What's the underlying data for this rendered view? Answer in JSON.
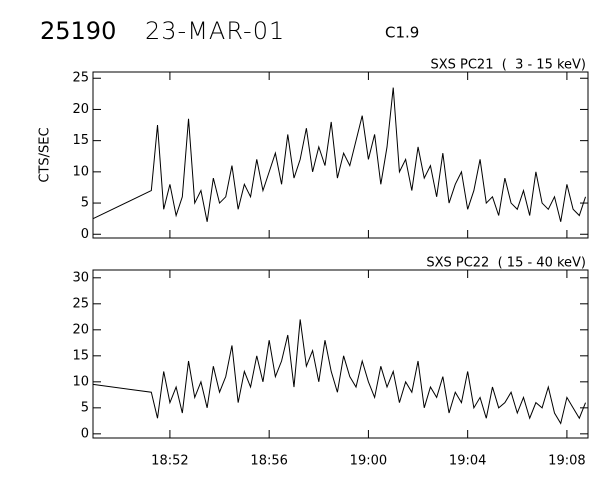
{
  "header": {
    "id": "25190",
    "date": "23-MAR-01",
    "class": "C1.9"
  },
  "chart_data": [
    {
      "type": "line",
      "title": "SXS PC21  (  3 - 15 keV)",
      "ylabel": "CTS/SEC",
      "color": "#000000",
      "x": [
        1128.9,
        1131.25,
        1131.5,
        1131.75,
        1132,
        1132.25,
        1132.5,
        1132.75,
        1133,
        1133.25,
        1133.5,
        1133.75,
        1134,
        1134.25,
        1134.5,
        1134.75,
        1135,
        1135.25,
        1135.5,
        1135.75,
        1136,
        1136.25,
        1136.5,
        1136.75,
        1137,
        1137.25,
        1137.5,
        1137.75,
        1138,
        1138.25,
        1138.5,
        1138.75,
        1139,
        1139.25,
        1139.5,
        1139.75,
        1140,
        1140.25,
        1140.5,
        1140.75,
        1141,
        1141.25,
        1141.5,
        1141.75,
        1142,
        1142.25,
        1142.5,
        1142.75,
        1143,
        1143.25,
        1143.5,
        1143.75,
        1144,
        1144.25,
        1144.5,
        1144.75,
        1145,
        1145.25,
        1145.5,
        1145.75,
        1146,
        1146.25,
        1146.5,
        1146.75,
        1147,
        1147.25,
        1147.5,
        1147.75,
        1148,
        1148.25,
        1148.5,
        1148.75
      ],
      "values": [
        2.5,
        7,
        17.5,
        4,
        8,
        3,
        6,
        18.5,
        5,
        7,
        2,
        9,
        5,
        6,
        11,
        4,
        8,
        6,
        12,
        7,
        10,
        13,
        8,
        16,
        9,
        12,
        17,
        10,
        14,
        11,
        18,
        9,
        13,
        11,
        15,
        19,
        12,
        16,
        8,
        14,
        23.5,
        10,
        12,
        7,
        14,
        9,
        11,
        6,
        13,
        5,
        8,
        10,
        4,
        7,
        12,
        5,
        6,
        3,
        9,
        5,
        4,
        7,
        3,
        10,
        5,
        4,
        6,
        2,
        8,
        4,
        3,
        6
      ],
      "xlim": [
        1128.9,
        1148.85
      ],
      "ylim": [
        -0.6,
        26
      ],
      "yticks": [
        0,
        5,
        10,
        15,
        20,
        25
      ],
      "xticks": [
        1132,
        1136,
        1140,
        1144,
        1148
      ]
    },
    {
      "type": "line",
      "title": "SXS PC22  ( 15 - 40 keV)",
      "color": "#000000",
      "x": [
        1128.9,
        1131.25,
        1131.5,
        1131.75,
        1132,
        1132.25,
        1132.5,
        1132.75,
        1133,
        1133.25,
        1133.5,
        1133.75,
        1134,
        1134.25,
        1134.5,
        1134.75,
        1135,
        1135.25,
        1135.5,
        1135.75,
        1136,
        1136.25,
        1136.5,
        1136.75,
        1137,
        1137.25,
        1137.5,
        1137.75,
        1138,
        1138.25,
        1138.5,
        1138.75,
        1139,
        1139.25,
        1139.5,
        1139.75,
        1140,
        1140.25,
        1140.5,
        1140.75,
        1141,
        1141.25,
        1141.5,
        1141.75,
        1142,
        1142.25,
        1142.5,
        1142.75,
        1143,
        1143.25,
        1143.5,
        1143.75,
        1144,
        1144.25,
        1144.5,
        1144.75,
        1145,
        1145.25,
        1145.5,
        1145.75,
        1146,
        1146.25,
        1146.5,
        1146.75,
        1147,
        1147.25,
        1147.5,
        1147.75,
        1148,
        1148.25,
        1148.5,
        1148.75
      ],
      "values": [
        9.5,
        8,
        3,
        12,
        6,
        9,
        4,
        14,
        7,
        10,
        5,
        13,
        8,
        11,
        17,
        6,
        12,
        9,
        15,
        10,
        18,
        11,
        14,
        19,
        9,
        22,
        13,
        16,
        10,
        18,
        12,
        8,
        15,
        11,
        9,
        14,
        10,
        7,
        13,
        9,
        12,
        6,
        10,
        8,
        14,
        5,
        9,
        7,
        11,
        4,
        8,
        6,
        12,
        5,
        7,
        3,
        9,
        5,
        6,
        8,
        4,
        7,
        3,
        6,
        5,
        9,
        4,
        2,
        7,
        5,
        3,
        6
      ],
      "xlim": [
        1128.9,
        1148.85
      ],
      "ylim": [
        -0.8,
        31.5
      ],
      "yticks": [
        0,
        5,
        10,
        15,
        20,
        25,
        30
      ],
      "xticks": [
        {
          "value": 1132,
          "label": "18:52"
        },
        {
          "value": 1136,
          "label": "18:56"
        },
        {
          "value": 1140,
          "label": "19:00"
        },
        {
          "value": 1144,
          "label": "19:04"
        },
        {
          "value": 1148,
          "label": "19:08"
        }
      ]
    }
  ]
}
